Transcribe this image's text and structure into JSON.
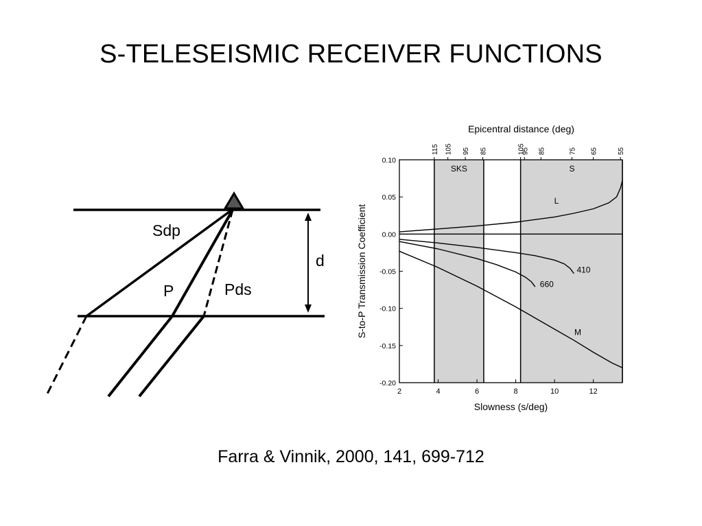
{
  "slide": {
    "title": "S-TELESEISMIC RECEIVER FUNCTIONS",
    "citation": "Farra & Vinnik, 2000, 141, 699-712"
  },
  "diagram": {
    "ray_labels": {
      "sdp": "Sdp",
      "p": "P",
      "pds": "Pds",
      "depth": "d"
    },
    "station_icon": "triangle-station-icon"
  },
  "chart_data": {
    "type": "line",
    "title": "",
    "xlabel": "Slowness (s/deg)",
    "ylabel": "S-to-P Transmission Coefficient",
    "top_axis_label": "Epicentral distance (deg)",
    "xlim": [
      2,
      13.5
    ],
    "ylim": [
      -0.2,
      0.1
    ],
    "x_ticks": [
      2,
      4,
      6,
      8,
      10,
      12
    ],
    "y_ticks": [
      0.1,
      0.05,
      0.0,
      -0.05,
      -0.1,
      -0.15,
      -0.2
    ],
    "y_tick_labels": [
      "0.10",
      "0.05",
      "0.00",
      "-0.05",
      "-0.10",
      "-0.15",
      "-0.20"
    ],
    "top_ticks": [
      {
        "label": "115",
        "x": 3.8
      },
      {
        "label": "105",
        "x": 4.5
      },
      {
        "label": "95",
        "x": 5.4
      },
      {
        "label": "85",
        "x": 6.3
      },
      {
        "label": "105",
        "x": 8.25
      },
      {
        "label": "95",
        "x": 8.45
      },
      {
        "label": "85",
        "x": 9.3
      },
      {
        "label": "75",
        "x": 10.9
      },
      {
        "label": "65",
        "x": 12.0
      },
      {
        "label": "55",
        "x": 13.4
      }
    ],
    "shaded_regions": [
      {
        "name": "SKS",
        "x": [
          3.8,
          6.35
        ]
      },
      {
        "name": "S",
        "x": [
          8.25,
          13.5
        ]
      }
    ],
    "series": [
      {
        "name": "L",
        "x": [
          2,
          4,
          6,
          8,
          10,
          11,
          12,
          12.8,
          13.2,
          13.4,
          13.5
        ],
        "y": [
          0.003,
          0.007,
          0.011,
          0.016,
          0.023,
          0.028,
          0.034,
          0.042,
          0.05,
          0.062,
          0.072
        ]
      },
      {
        "name": "410",
        "x": [
          2,
          4,
          6,
          8,
          9,
          10,
          10.5,
          10.8,
          11.0
        ],
        "y": [
          -0.007,
          -0.012,
          -0.018,
          -0.025,
          -0.029,
          -0.035,
          -0.04,
          -0.046,
          -0.053
        ]
      },
      {
        "name": "660",
        "x": [
          2,
          4,
          6,
          7,
          8,
          8.5,
          8.8,
          9.0
        ],
        "y": [
          -0.01,
          -0.02,
          -0.033,
          -0.041,
          -0.051,
          -0.058,
          -0.064,
          -0.071
        ]
      },
      {
        "name": "M",
        "x": [
          2,
          4,
          6,
          8,
          10,
          11,
          12,
          13,
          13.5
        ],
        "y": [
          -0.023,
          -0.045,
          -0.07,
          -0.098,
          -0.128,
          -0.143,
          -0.159,
          -0.174,
          -0.18
        ]
      }
    ]
  }
}
